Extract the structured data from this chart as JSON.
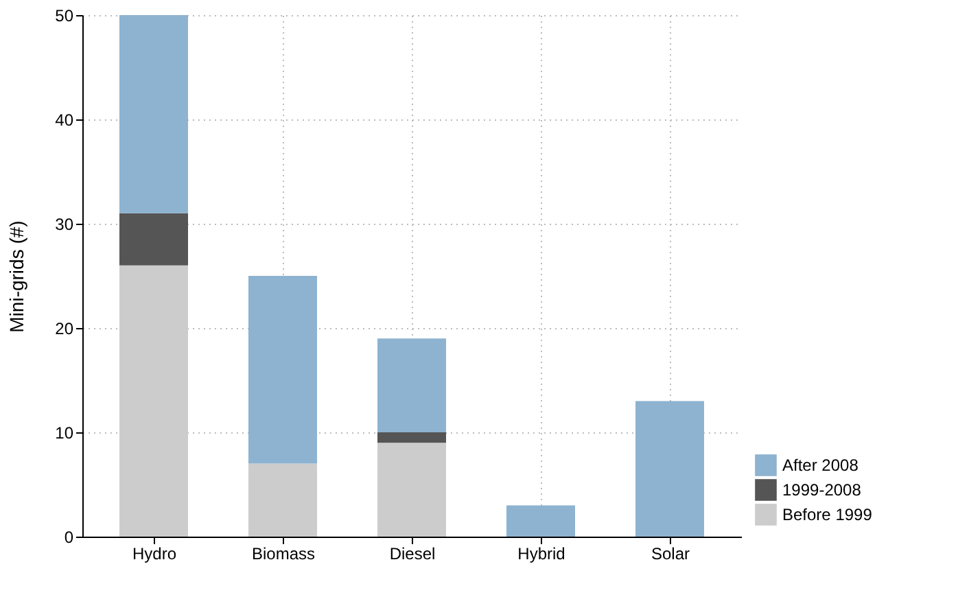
{
  "chart_data": {
    "type": "bar",
    "stacked": true,
    "ylabel": "Mini-grids (#)",
    "categories": [
      "Hydro",
      "Biomass",
      "Diesel",
      "Hybrid",
      "Solar"
    ],
    "series": [
      {
        "name": "Before 1999",
        "color": "#cccccc",
        "values": [
          26,
          7,
          9,
          null,
          null
        ]
      },
      {
        "name": "1999-2008",
        "color": "#555555",
        "values": [
          5,
          null,
          1,
          null,
          null
        ]
      },
      {
        "name": "After 2008",
        "color": "#8db3d0",
        "values": [
          19,
          18,
          9,
          3,
          13
        ]
      }
    ],
    "ylim": [
      0,
      50
    ],
    "yticks": [
      0,
      10,
      20,
      30,
      40,
      50
    ],
    "grid": true,
    "legend": "bottom right"
  }
}
